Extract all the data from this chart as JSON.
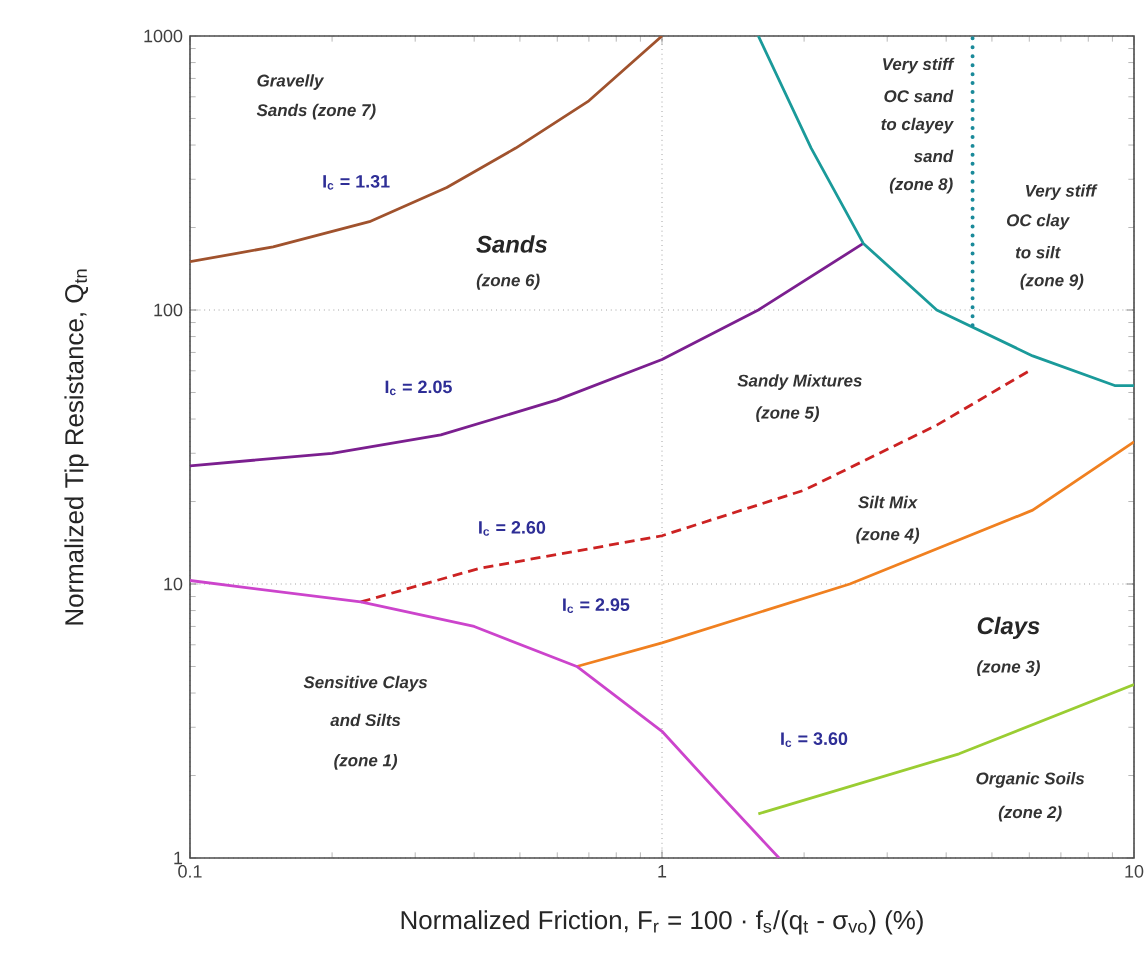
{
  "chart_data": {
    "type": "line",
    "log": "xy",
    "grid": true,
    "marker": "none",
    "xlabel": "Normalized Friction, F$_{r}$ = 100 · f$_{s}$/(q$_{t}$ - σ$_{vo}$)  (%)",
    "ylabel": "Normalized Tip Resistance, Q$_{tn}$",
    "xlim": [
      0.1,
      10
    ],
    "ylim": [
      1,
      1000
    ],
    "xticks": [
      0.1,
      1,
      10
    ],
    "yticks": [
      1,
      10,
      100,
      1000
    ],
    "series": [
      {
        "color": "#a0522d",
        "x": [
          0.1,
          0.15,
          0.24,
          0.35,
          0.49,
          0.7,
          0.85,
          1.0
        ],
        "values": [
          150,
          170,
          210,
          280,
          390,
          580,
          780,
          1000
        ]
      },
      {
        "color": "#7b1f8f",
        "x": [
          0.1,
          0.2,
          0.34,
          0.6,
          1.0,
          1.6,
          2.67
        ],
        "values": [
          27,
          30,
          35,
          47,
          66,
          100,
          175
        ]
      },
      {
        "color": "#1a9a9a",
        "x": [
          1.6,
          2.07,
          2.67,
          3.82,
          6.1,
          9.1,
          10
        ],
        "values": [
          1000,
          390,
          175,
          100,
          68,
          53,
          53
        ]
      },
      {
        "color": "#1a8a9a",
        "line_style": "dotted",
        "x": [
          4.55,
          4.55
        ],
        "values": [
          88,
          1000
        ]
      },
      {
        "color": "#cc2222",
        "line_style": "dashed",
        "x": [
          0.23,
          0.41,
          1.0,
          2.0,
          3.82,
          6.0
        ],
        "values": [
          8.6,
          11.4,
          15,
          22,
          38,
          60
        ]
      },
      {
        "color": "#f08020",
        "x": [
          0.66,
          1.0,
          2.5,
          6.1,
          10
        ],
        "values": [
          5,
          6.1,
          10,
          18.6,
          33
        ]
      },
      {
        "color": "#9acd32",
        "x": [
          1.6,
          4.26,
          10
        ],
        "values": [
          1.45,
          2.4,
          4.3
        ]
      },
      {
        "color": "#cc44cc",
        "x": [
          0.1,
          0.23,
          0.4,
          0.66,
          1.0,
          1.35,
          1.77
        ],
        "values": [
          10.3,
          8.6,
          7,
          5,
          2.9,
          1.65,
          1
        ]
      }
    ],
    "annotations": [
      "Gravelly",
      "Sands (zone 7)",
      "I$_{c}$ = 1.31",
      "Sands",
      "(zone 6)",
      "I$_{c}$ = 2.05",
      "Sandy Mixtures",
      "(zone 5)",
      "Very stiff",
      "OC sand",
      "to clayey",
      "sand",
      "(zone 8)",
      "Very stiff",
      "OC clay",
      "to silt",
      "(zone 9)",
      "Silt Mix",
      "(zone 4)",
      "I$_{c}$ = 2.60",
      "I$_{c}$ = 2.95",
      "Clays",
      "(zone 3)",
      "Sensitive Clays",
      "and Silts",
      "(zone 1)",
      "I$_{c}$ = 3.60",
      "Organic Soils",
      "(zone 2)"
    ]
  }
}
